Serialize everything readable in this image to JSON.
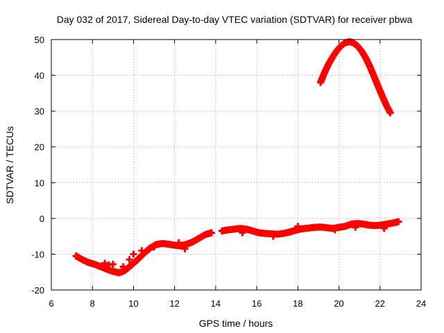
{
  "chart_data": {
    "type": "scatter",
    "title": "Day 032 of 2017, Sidereal Day-to-day VTEC variation (SDTVAR) for receiver pbwa",
    "xlabel": "GPS time / hours",
    "ylabel": "SDTVAR / TECUs",
    "xlim": [
      6,
      24
    ],
    "ylim": [
      -20,
      50
    ],
    "xticks": [
      6,
      8,
      10,
      12,
      14,
      16,
      18,
      20,
      22,
      24
    ],
    "yticks": [
      -20,
      -10,
      0,
      10,
      20,
      30,
      40,
      50
    ],
    "xtick_labels": [
      "6",
      "8",
      "10",
      "12",
      "14",
      "16",
      "18",
      "20",
      "22",
      "24"
    ],
    "ytick_labels": [
      "-20",
      "-10",
      "0",
      "10",
      "20",
      "30",
      "40",
      "50"
    ],
    "grid": true,
    "marker": "+",
    "color": "#ff0000",
    "series": [
      {
        "name": "main-track",
        "x": [
          7.2,
          7.5,
          7.8,
          8.1,
          8.4,
          8.7,
          9.0,
          9.3,
          9.6,
          9.9,
          10.2,
          10.5,
          10.8,
          11.1,
          11.4,
          11.7,
          12.0,
          12.3,
          12.6,
          12.9,
          13.2,
          13.5,
          13.8,
          14.3,
          14.6,
          14.9,
          15.2,
          15.5,
          15.8,
          16.1,
          16.4,
          16.7,
          17.0,
          17.3,
          17.6,
          17.9,
          18.2,
          18.5,
          18.8,
          19.1,
          19.4,
          19.7,
          20.0,
          20.3,
          20.6,
          20.9,
          21.2,
          21.5,
          21.8,
          22.1,
          22.4,
          22.7,
          22.9
        ],
        "y": [
          -10.5,
          -11.5,
          -12.3,
          -12.8,
          -13.5,
          -14.2,
          -14.8,
          -15.2,
          -14.5,
          -13.0,
          -11.5,
          -9.8,
          -8.3,
          -7.3,
          -7.0,
          -7.2,
          -7.5,
          -7.7,
          -7.2,
          -6.5,
          -5.5,
          -4.5,
          -4.0,
          -3.5,
          -3.2,
          -3.0,
          -2.8,
          -3.0,
          -3.5,
          -4.0,
          -4.2,
          -4.3,
          -4.4,
          -4.2,
          -3.8,
          -3.3,
          -2.9,
          -2.7,
          -2.5,
          -2.4,
          -2.6,
          -2.8,
          -2.5,
          -2.2,
          -1.6,
          -1.4,
          -1.6,
          -1.9,
          -2.0,
          -1.8,
          -1.5,
          -1.2,
          -0.9
        ]
      },
      {
        "name": "arc",
        "x": [
          19.1,
          19.3,
          19.5,
          19.7,
          19.9,
          20.1,
          20.3,
          20.5,
          20.7,
          20.9,
          21.1,
          21.3,
          21.5,
          21.7,
          21.9,
          22.1,
          22.3,
          22.5
        ],
        "y": [
          38,
          40.8,
          43.2,
          45.2,
          46.9,
          48.2,
          49.1,
          49.4,
          49.1,
          48.2,
          46.8,
          44.9,
          42.5,
          39.8,
          37.0,
          34.3,
          31.7,
          29.5
        ]
      },
      {
        "name": "scatter-spread",
        "x": [
          8.6,
          8.8,
          9.0,
          9.5,
          9.8,
          10.0,
          10.4,
          11.0,
          12.2,
          12.5,
          15.3,
          16.8,
          18.0,
          19.8,
          20.8,
          22.2
        ],
        "y": [
          -12.5,
          -13.0,
          -12.8,
          -13.5,
          -11.5,
          -10.0,
          -9.0,
          -8.0,
          -6.8,
          -8.5,
          -4.0,
          -5.0,
          -2.2,
          -3.2,
          -2.5,
          -2.8
        ]
      }
    ]
  }
}
